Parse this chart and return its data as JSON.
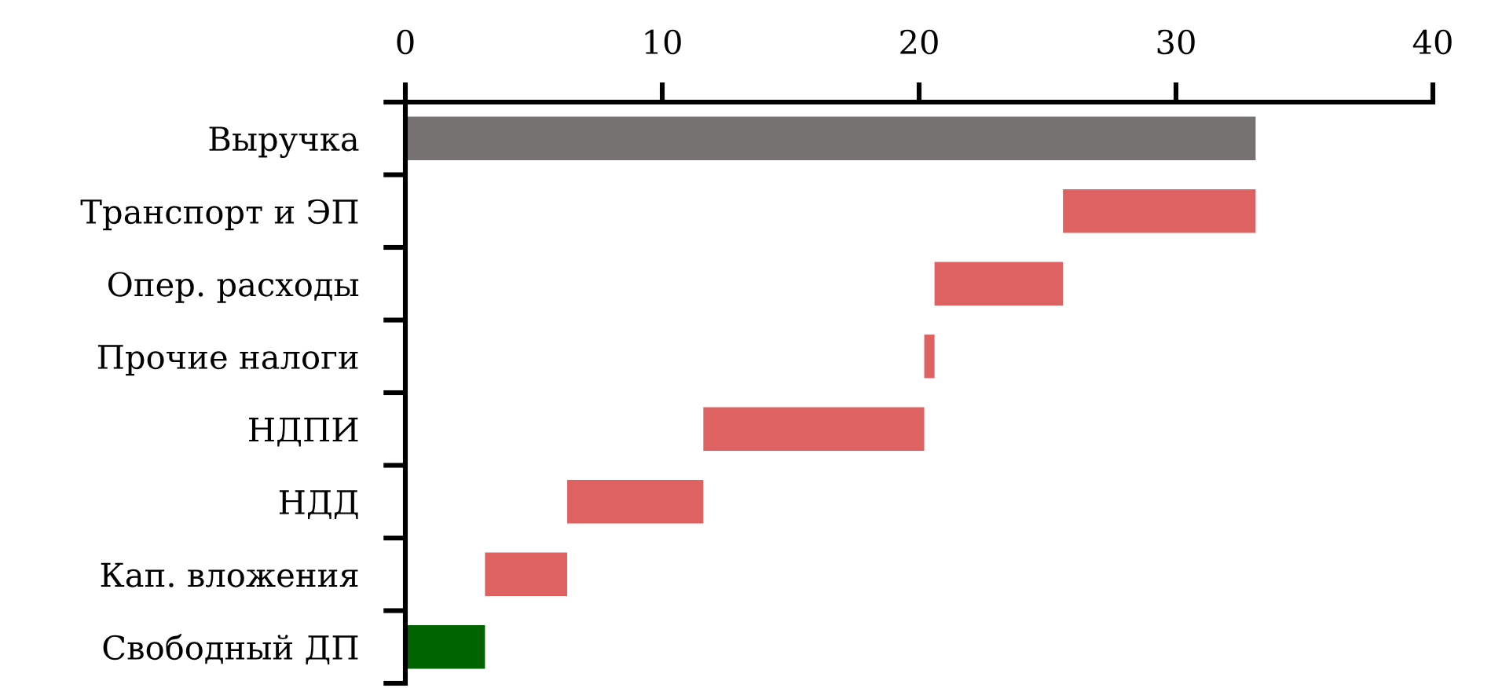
{
  "chart_data": {
    "type": "bar",
    "orientation": "horizontal",
    "categories": [
      "Выручка",
      "Транспорт и ЭП",
      "Опер. расходы",
      "Прочие налоги",
      "НДПИ",
      "НДД",
      "Кап. вложения",
      "Свободный ДП"
    ],
    "values": [
      33.1,
      7.5,
      5.0,
      0.4,
      8.6,
      5.3,
      3.2,
      3.1
    ],
    "base": [
      0,
      25.6,
      20.6,
      20.2,
      11.6,
      6.3,
      3.1,
      0
    ],
    "colors": [
      "#767271",
      "#df6262",
      "#df6262",
      "#df6262",
      "#df6262",
      "#df6262",
      "#df6262",
      "#006400"
    ],
    "xlim": [
      0,
      40
    ],
    "xticks": [
      0,
      10,
      20,
      30,
      40
    ]
  }
}
